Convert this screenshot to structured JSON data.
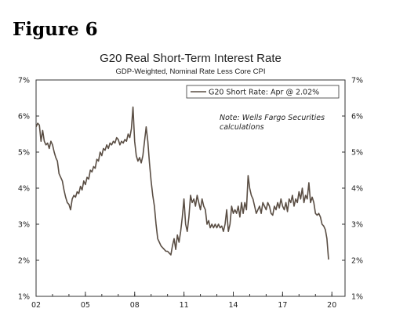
{
  "figure_label": "Figure 6",
  "chart_data": {
    "type": "line",
    "title": "G20 Real Short-Term Interest Rate",
    "subtitle": "GDP-Weighted, Nominal Rate Less Core CPI",
    "note_line1": "Note: Wells Fargo Securities",
    "note_line2": "calculations",
    "ylim": [
      1,
      7
    ],
    "xlim": [
      2002,
      2020.8
    ],
    "y_ticks": [
      1,
      2,
      3,
      4,
      5,
      6,
      7
    ],
    "y_tick_labels": [
      "1%",
      "2%",
      "3%",
      "4%",
      "5%",
      "6%",
      "7%"
    ],
    "x_ticks": [
      2002,
      2005,
      2008,
      2011,
      2014,
      2017,
      2020
    ],
    "x_tick_labels": [
      "02",
      "05",
      "08",
      "11",
      "14",
      "17",
      "20"
    ],
    "grid": false,
    "legend_position": "top-right",
    "line_color": "#5a4e44",
    "series": [
      {
        "name": "G20 Short Rate: Apr @ 2.02%",
        "points": [
          [
            2002.0,
            5.7
          ],
          [
            2002.1,
            5.8
          ],
          [
            2002.2,
            5.75
          ],
          [
            2002.3,
            5.3
          ],
          [
            2002.4,
            5.6
          ],
          [
            2002.5,
            5.3
          ],
          [
            2002.6,
            5.2
          ],
          [
            2002.7,
            5.25
          ],
          [
            2002.8,
            5.1
          ],
          [
            2002.9,
            5.3
          ],
          [
            2003.0,
            5.2
          ],
          [
            2003.1,
            5.0
          ],
          [
            2003.2,
            4.85
          ],
          [
            2003.3,
            4.75
          ],
          [
            2003.4,
            4.4
          ],
          [
            2003.5,
            4.3
          ],
          [
            2003.6,
            4.2
          ],
          [
            2003.7,
            3.95
          ],
          [
            2003.8,
            3.75
          ],
          [
            2003.9,
            3.6
          ],
          [
            2004.0,
            3.55
          ],
          [
            2004.1,
            3.4
          ],
          [
            2004.2,
            3.7
          ],
          [
            2004.3,
            3.8
          ],
          [
            2004.4,
            3.75
          ],
          [
            2004.5,
            3.9
          ],
          [
            2004.6,
            3.85
          ],
          [
            2004.7,
            4.05
          ],
          [
            2004.8,
            3.95
          ],
          [
            2004.9,
            4.2
          ],
          [
            2005.0,
            4.1
          ],
          [
            2005.1,
            4.3
          ],
          [
            2005.2,
            4.25
          ],
          [
            2005.3,
            4.5
          ],
          [
            2005.4,
            4.45
          ],
          [
            2005.5,
            4.6
          ],
          [
            2005.6,
            4.55
          ],
          [
            2005.7,
            4.8
          ],
          [
            2005.8,
            4.75
          ],
          [
            2005.9,
            5.0
          ],
          [
            2006.0,
            4.9
          ],
          [
            2006.1,
            5.1
          ],
          [
            2006.2,
            5.05
          ],
          [
            2006.3,
            5.2
          ],
          [
            2006.4,
            5.1
          ],
          [
            2006.5,
            5.25
          ],
          [
            2006.6,
            5.2
          ],
          [
            2006.7,
            5.3
          ],
          [
            2006.8,
            5.25
          ],
          [
            2006.9,
            5.4
          ],
          [
            2007.0,
            5.35
          ],
          [
            2007.1,
            5.2
          ],
          [
            2007.2,
            5.3
          ],
          [
            2007.3,
            5.25
          ],
          [
            2007.4,
            5.35
          ],
          [
            2007.5,
            5.3
          ],
          [
            2007.6,
            5.5
          ],
          [
            2007.7,
            5.4
          ],
          [
            2007.8,
            5.65
          ],
          [
            2007.9,
            6.25
          ],
          [
            2008.0,
            5.3
          ],
          [
            2008.1,
            4.9
          ],
          [
            2008.2,
            4.75
          ],
          [
            2008.3,
            4.85
          ],
          [
            2008.4,
            4.7
          ],
          [
            2008.5,
            4.9
          ],
          [
            2008.6,
            5.3
          ],
          [
            2008.7,
            5.7
          ],
          [
            2008.8,
            5.3
          ],
          [
            2008.9,
            4.7
          ],
          [
            2009.0,
            4.2
          ],
          [
            2009.1,
            3.8
          ],
          [
            2009.2,
            3.5
          ],
          [
            2009.3,
            3.0
          ],
          [
            2009.4,
            2.6
          ],
          [
            2009.5,
            2.5
          ],
          [
            2009.6,
            2.4
          ],
          [
            2009.7,
            2.35
          ],
          [
            2009.8,
            2.3
          ],
          [
            2009.9,
            2.25
          ],
          [
            2010.0,
            2.25
          ],
          [
            2010.1,
            2.2
          ],
          [
            2010.2,
            2.15
          ],
          [
            2010.3,
            2.4
          ],
          [
            2010.4,
            2.6
          ],
          [
            2010.5,
            2.3
          ],
          [
            2010.6,
            2.7
          ],
          [
            2010.7,
            2.5
          ],
          [
            2010.8,
            2.8
          ],
          [
            2010.9,
            3.2
          ],
          [
            2011.0,
            3.7
          ],
          [
            2011.1,
            3.0
          ],
          [
            2011.2,
            2.8
          ],
          [
            2011.3,
            3.2
          ],
          [
            2011.4,
            3.8
          ],
          [
            2011.5,
            3.6
          ],
          [
            2011.6,
            3.7
          ],
          [
            2011.7,
            3.5
          ],
          [
            2011.8,
            3.8
          ],
          [
            2011.9,
            3.6
          ],
          [
            2012.0,
            3.4
          ],
          [
            2012.1,
            3.7
          ],
          [
            2012.2,
            3.5
          ],
          [
            2012.3,
            3.4
          ],
          [
            2012.4,
            3.0
          ],
          [
            2012.5,
            3.1
          ],
          [
            2012.6,
            2.9
          ],
          [
            2012.7,
            3.0
          ],
          [
            2012.8,
            2.9
          ],
          [
            2012.9,
            3.0
          ],
          [
            2013.0,
            2.9
          ],
          [
            2013.1,
            3.0
          ],
          [
            2013.2,
            2.9
          ],
          [
            2013.3,
            2.95
          ],
          [
            2013.4,
            2.8
          ],
          [
            2013.5,
            3.0
          ],
          [
            2013.6,
            3.4
          ],
          [
            2013.7,
            2.8
          ],
          [
            2013.8,
            3.0
          ],
          [
            2013.9,
            3.5
          ],
          [
            2014.0,
            3.3
          ],
          [
            2014.1,
            3.4
          ],
          [
            2014.2,
            3.3
          ],
          [
            2014.3,
            3.5
          ],
          [
            2014.4,
            3.2
          ],
          [
            2014.5,
            3.6
          ],
          [
            2014.6,
            3.3
          ],
          [
            2014.7,
            3.6
          ],
          [
            2014.8,
            3.4
          ],
          [
            2014.9,
            4.35
          ],
          [
            2015.0,
            4.0
          ],
          [
            2015.1,
            3.8
          ],
          [
            2015.2,
            3.7
          ],
          [
            2015.3,
            3.5
          ],
          [
            2015.4,
            3.3
          ],
          [
            2015.5,
            3.4
          ],
          [
            2015.6,
            3.5
          ],
          [
            2015.7,
            3.3
          ],
          [
            2015.8,
            3.6
          ],
          [
            2015.9,
            3.5
          ],
          [
            2016.0,
            3.4
          ],
          [
            2016.1,
            3.6
          ],
          [
            2016.2,
            3.5
          ],
          [
            2016.3,
            3.3
          ],
          [
            2016.4,
            3.25
          ],
          [
            2016.5,
            3.5
          ],
          [
            2016.6,
            3.4
          ],
          [
            2016.7,
            3.6
          ],
          [
            2016.8,
            3.45
          ],
          [
            2016.9,
            3.7
          ],
          [
            2017.0,
            3.5
          ],
          [
            2017.1,
            3.4
          ],
          [
            2017.2,
            3.6
          ],
          [
            2017.3,
            3.35
          ],
          [
            2017.4,
            3.7
          ],
          [
            2017.5,
            3.6
          ],
          [
            2017.6,
            3.8
          ],
          [
            2017.7,
            3.5
          ],
          [
            2017.8,
            3.7
          ],
          [
            2017.9,
            3.6
          ],
          [
            2018.0,
            3.9
          ],
          [
            2018.1,
            3.7
          ],
          [
            2018.2,
            4.0
          ],
          [
            2018.3,
            3.6
          ],
          [
            2018.4,
            3.8
          ],
          [
            2018.5,
            3.7
          ],
          [
            2018.6,
            4.15
          ],
          [
            2018.7,
            3.6
          ],
          [
            2018.8,
            3.75
          ],
          [
            2018.9,
            3.6
          ],
          [
            2019.0,
            3.3
          ],
          [
            2019.1,
            3.25
          ],
          [
            2019.2,
            3.3
          ],
          [
            2019.3,
            3.2
          ],
          [
            2019.4,
            3.0
          ],
          [
            2019.5,
            2.95
          ],
          [
            2019.6,
            2.85
          ],
          [
            2019.7,
            2.6
          ],
          [
            2019.8,
            2.02
          ]
        ]
      }
    ]
  }
}
